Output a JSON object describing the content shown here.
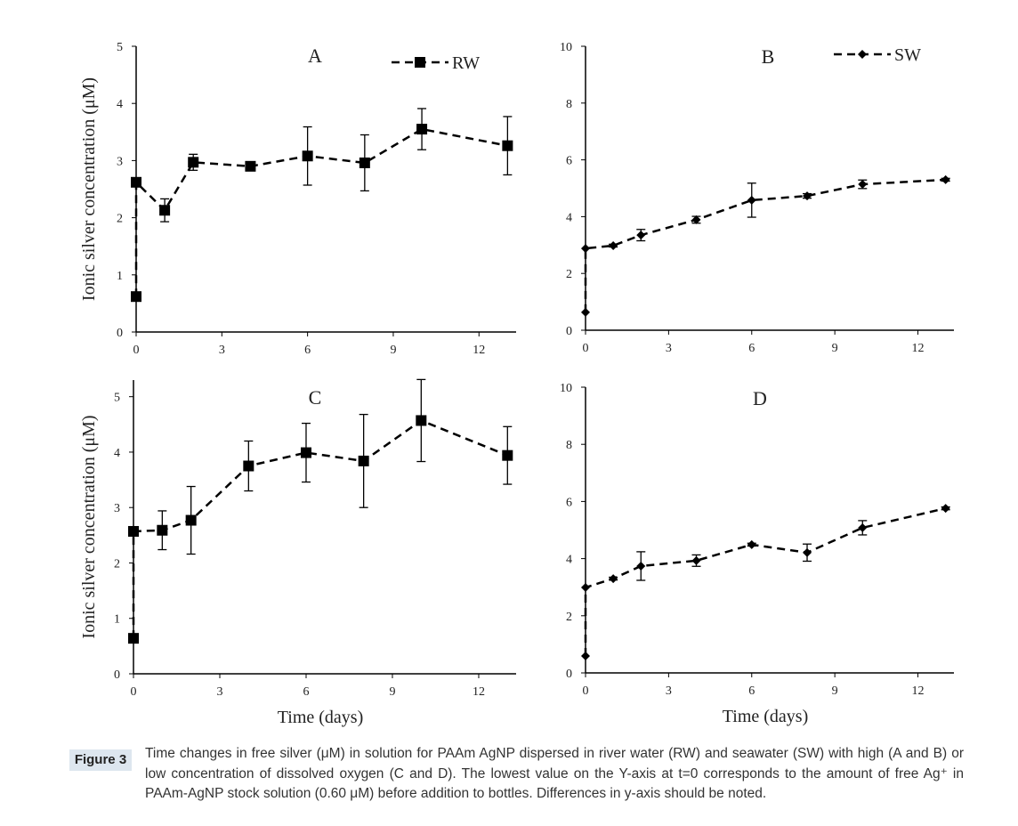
{
  "chart_data": [
    {
      "type": "line",
      "panel_label": "A",
      "y_label": "Ionic silver concentration (μM)",
      "xlim": [
        0,
        13.3
      ],
      "xticks": [
        0,
        3,
        6,
        9,
        12
      ],
      "ylim": [
        0,
        5
      ],
      "yticks": [
        0,
        1,
        2,
        3,
        4,
        5
      ],
      "series": [
        {
          "name": "RW",
          "color": "#000000",
          "marker": "square",
          "x": [
            0,
            0,
            1,
            2,
            4,
            6,
            8,
            10,
            13
          ],
          "values": [
            0.62,
            2.62,
            2.13,
            2.97,
            2.9,
            3.08,
            2.96,
            3.55,
            3.26
          ],
          "errors": [
            null,
            null,
            0.2,
            0.14,
            0.05,
            0.51,
            0.49,
            0.36,
            0.51
          ]
        }
      ]
    },
    {
      "type": "line",
      "panel_label": "B",
      "xlim": [
        0,
        13.3
      ],
      "xticks": [
        0,
        3,
        6,
        9,
        12
      ],
      "ylim": [
        0,
        10
      ],
      "yticks": [
        0,
        2,
        4,
        6,
        8,
        10
      ],
      "series": [
        {
          "name": "SW",
          "color": "#000000",
          "marker": "diamond",
          "x": [
            0,
            0,
            1,
            2,
            4,
            6,
            8,
            10,
            13
          ],
          "values": [
            0.63,
            2.88,
            2.98,
            3.35,
            3.89,
            4.58,
            4.73,
            5.14,
            5.3
          ],
          "errors": [
            null,
            null,
            0.05,
            0.2,
            0.12,
            0.6,
            0.08,
            0.15,
            0.05
          ]
        }
      ]
    },
    {
      "type": "line",
      "panel_label": "C",
      "y_label": "Ionic silver concentration (μM)",
      "x_label": "Time (days)",
      "xlim": [
        0,
        13.3
      ],
      "xticks": [
        0,
        3,
        6,
        9,
        12
      ],
      "ylim": [
        0,
        5.3
      ],
      "yticks": [
        0,
        1,
        2,
        3,
        4,
        5
      ],
      "series": [
        {
          "color": "#000000",
          "marker": "square",
          "x": [
            0,
            0,
            1,
            2,
            4,
            6,
            8,
            10,
            13
          ],
          "values": [
            0.64,
            2.57,
            2.59,
            2.77,
            3.75,
            3.99,
            3.84,
            4.57,
            3.94
          ],
          "errors": [
            null,
            null,
            0.35,
            0.61,
            0.45,
            0.53,
            0.84,
            0.74,
            0.52
          ]
        }
      ]
    },
    {
      "type": "line",
      "panel_label": "D",
      "x_label": "Time (days)",
      "xlim": [
        0,
        13.3
      ],
      "xticks": [
        0,
        3,
        6,
        9,
        12
      ],
      "ylim": [
        0,
        10
      ],
      "yticks": [
        0,
        2,
        4,
        6,
        8,
        10
      ],
      "series": [
        {
          "color": "#000000",
          "marker": "diamond",
          "x": [
            0,
            0,
            1,
            2,
            4,
            6,
            8,
            10,
            13
          ],
          "values": [
            0.59,
            2.99,
            3.3,
            3.74,
            3.93,
            4.49,
            4.21,
            5.08,
            5.76
          ],
          "errors": [
            null,
            null,
            0.05,
            0.5,
            0.2,
            0.05,
            0.3,
            0.25,
            0.05
          ]
        }
      ]
    }
  ],
  "caption": {
    "label": "Figure 3",
    "text": "Time changes in free silver (μM) in solution for PAAm AgNP dispersed in river water (RW) and seawater (SW) with high (A and B) or low concentration of dissolved oxygen (C and D). The lowest value on the Y-axis at t=0 corresponds to the amount of free Ag⁺ in PAAm-AgNP stock solution (0.60 μM) before addition to bottles. Differences in y-axis should be noted."
  }
}
